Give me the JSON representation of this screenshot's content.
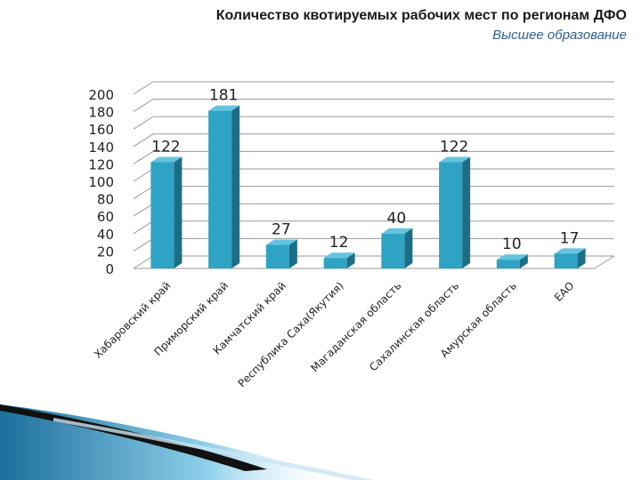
{
  "header": {
    "title": "Количество квотируемых рабочих мест по регионам ДФО",
    "subtitle": "Высшее образование"
  },
  "chart_data": {
    "type": "bar",
    "title": "Количество квотируемых рабочих мест по регионам ДФО",
    "subtitle": "Высшее образование",
    "xlabel": "",
    "ylabel": "",
    "categories": [
      "Хабаровский край",
      "Приморский край",
      "Камчатский край",
      "Республика Саха(Якутия)",
      "Магаданская область",
      "Сахалинская область",
      "Амурская область",
      "ЕАО"
    ],
    "values": [
      122,
      181,
      27,
      12,
      40,
      122,
      10,
      17
    ],
    "yticks": [
      0,
      20,
      40,
      60,
      80,
      100,
      120,
      140,
      160,
      180,
      200
    ],
    "ylim": [
      0,
      200
    ],
    "grid": true,
    "legend": "none",
    "colors": {
      "bar_front": "#2ea3c4",
      "bar_side": "#1c6e87",
      "bar_top": "#63c4df",
      "grid": "#9a9a9a"
    }
  }
}
